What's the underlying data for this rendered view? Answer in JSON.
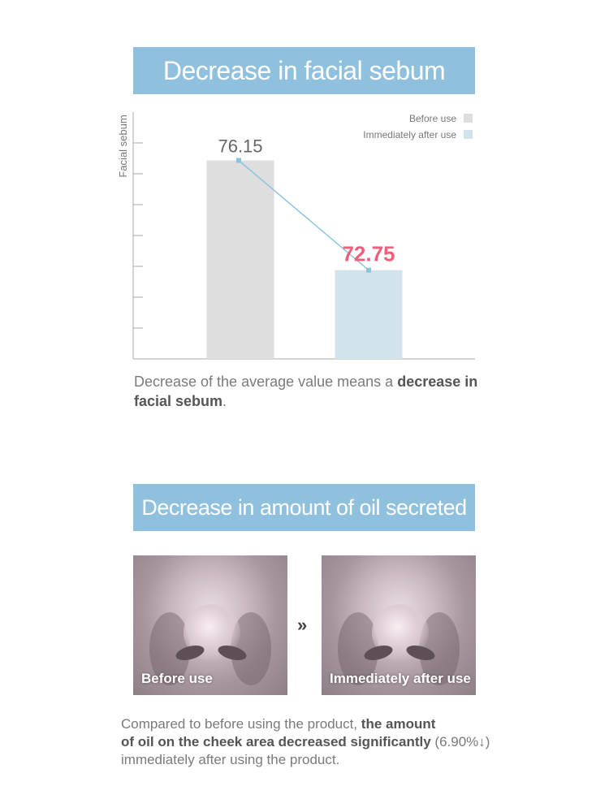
{
  "section1": {
    "title": "Decrease in facial sebum",
    "caption_plain": "Decrease of the average value means a ",
    "caption_bold": "decrease in facial sebum",
    "caption_end": "."
  },
  "chart_data": {
    "type": "bar",
    "title": "",
    "ylabel": "Facial sebum",
    "xlabel": "",
    "categories": [
      "Before use",
      "Immediately after use"
    ],
    "values": [
      76.15,
      72.75
    ],
    "ylim": [
      70,
      77.65
    ],
    "grid": false,
    "legend": "top-right",
    "connector_line": true,
    "data_labels": [
      "76.15",
      "72.75"
    ],
    "colors": {
      "before": "#dedede",
      "after": "#d2e3ec",
      "line": "#8cc3e0",
      "highlight_label": "#ef5f7b",
      "label": "#666666",
      "axis": "#aaaaaa"
    }
  },
  "section2": {
    "title": "Decrease in amount of oil secreted",
    "photo_before_label": "Before use",
    "photo_after_label": "Immediately after use",
    "arrow_glyph": "»",
    "caption_line1_plain": "Compared to before using the product, ",
    "caption_line1_bold": "the amount",
    "caption_line2_bold": "of oil on the cheek area decreased significantly",
    "caption_line2_plain": " (6.90%↓)",
    "caption_line3": "immediately after using the product."
  },
  "colors": {
    "banner": "#8fc1de",
    "text": "#7a7a7a"
  }
}
